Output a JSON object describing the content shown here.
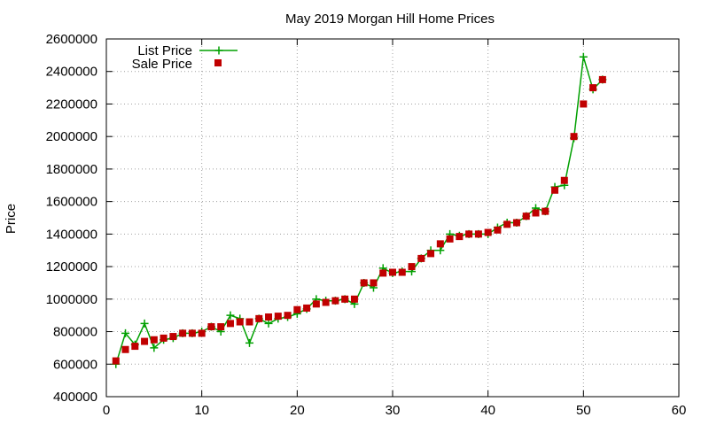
{
  "chart_data": {
    "type": "line",
    "title": "May 2019 Morgan Hill Home Prices",
    "xlabel": "",
    "ylabel": "Price",
    "xlim": [
      0,
      60
    ],
    "ylim": [
      400000,
      2600000
    ],
    "x_ticks": [
      0,
      10,
      20,
      30,
      40,
      50,
      60
    ],
    "y_ticks": [
      400000,
      600000,
      800000,
      1000000,
      1200000,
      1400000,
      1600000,
      1800000,
      2000000,
      2200000,
      2400000,
      2600000
    ],
    "grid": true,
    "legend_position": "top-left",
    "x": [
      1,
      2,
      3,
      4,
      5,
      6,
      7,
      8,
      9,
      10,
      11,
      12,
      13,
      14,
      15,
      16,
      17,
      18,
      19,
      20,
      21,
      22,
      23,
      24,
      25,
      26,
      27,
      28,
      29,
      30,
      31,
      32,
      33,
      34,
      35,
      36,
      37,
      38,
      39,
      40,
      41,
      42,
      43,
      44,
      45,
      46,
      47,
      48,
      49,
      50,
      51,
      52
    ],
    "series": [
      {
        "name": "List Price",
        "style": "lines+points",
        "marker": "plus",
        "color": "#00a000",
        "values": [
          600000,
          790000,
          720000,
          850000,
          700000,
          750000,
          760000,
          790000,
          790000,
          800000,
          830000,
          800000,
          900000,
          880000,
          730000,
          880000,
          850000,
          880000,
          890000,
          910000,
          940000,
          1000000,
          990000,
          990000,
          1000000,
          970000,
          1100000,
          1070000,
          1190000,
          1160000,
          1170000,
          1170000,
          1250000,
          1300000,
          1300000,
          1400000,
          1390000,
          1400000,
          1400000,
          1400000,
          1440000,
          1470000,
          1470000,
          1510000,
          1560000,
          1540000,
          1690000,
          1700000,
          1990000,
          2490000,
          2290000,
          2350000
        ]
      },
      {
        "name": "Sale Price",
        "style": "points",
        "marker": "square",
        "color": "#c00000",
        "values": [
          620000,
          690000,
          710000,
          740000,
          750000,
          760000,
          770000,
          790000,
          790000,
          790000,
          830000,
          830000,
          850000,
          860000,
          860000,
          880000,
          890000,
          895000,
          900000,
          935000,
          945000,
          970000,
          980000,
          990000,
          1000000,
          1000000,
          1100000,
          1100000,
          1160000,
          1165000,
          1165000,
          1200000,
          1250000,
          1280000,
          1340000,
          1370000,
          1385000,
          1400000,
          1400000,
          1410000,
          1425000,
          1460000,
          1470000,
          1510000,
          1530000,
          1540000,
          1670000,
          1730000,
          2000000,
          2200000,
          2300000,
          2350000
        ]
      }
    ]
  }
}
